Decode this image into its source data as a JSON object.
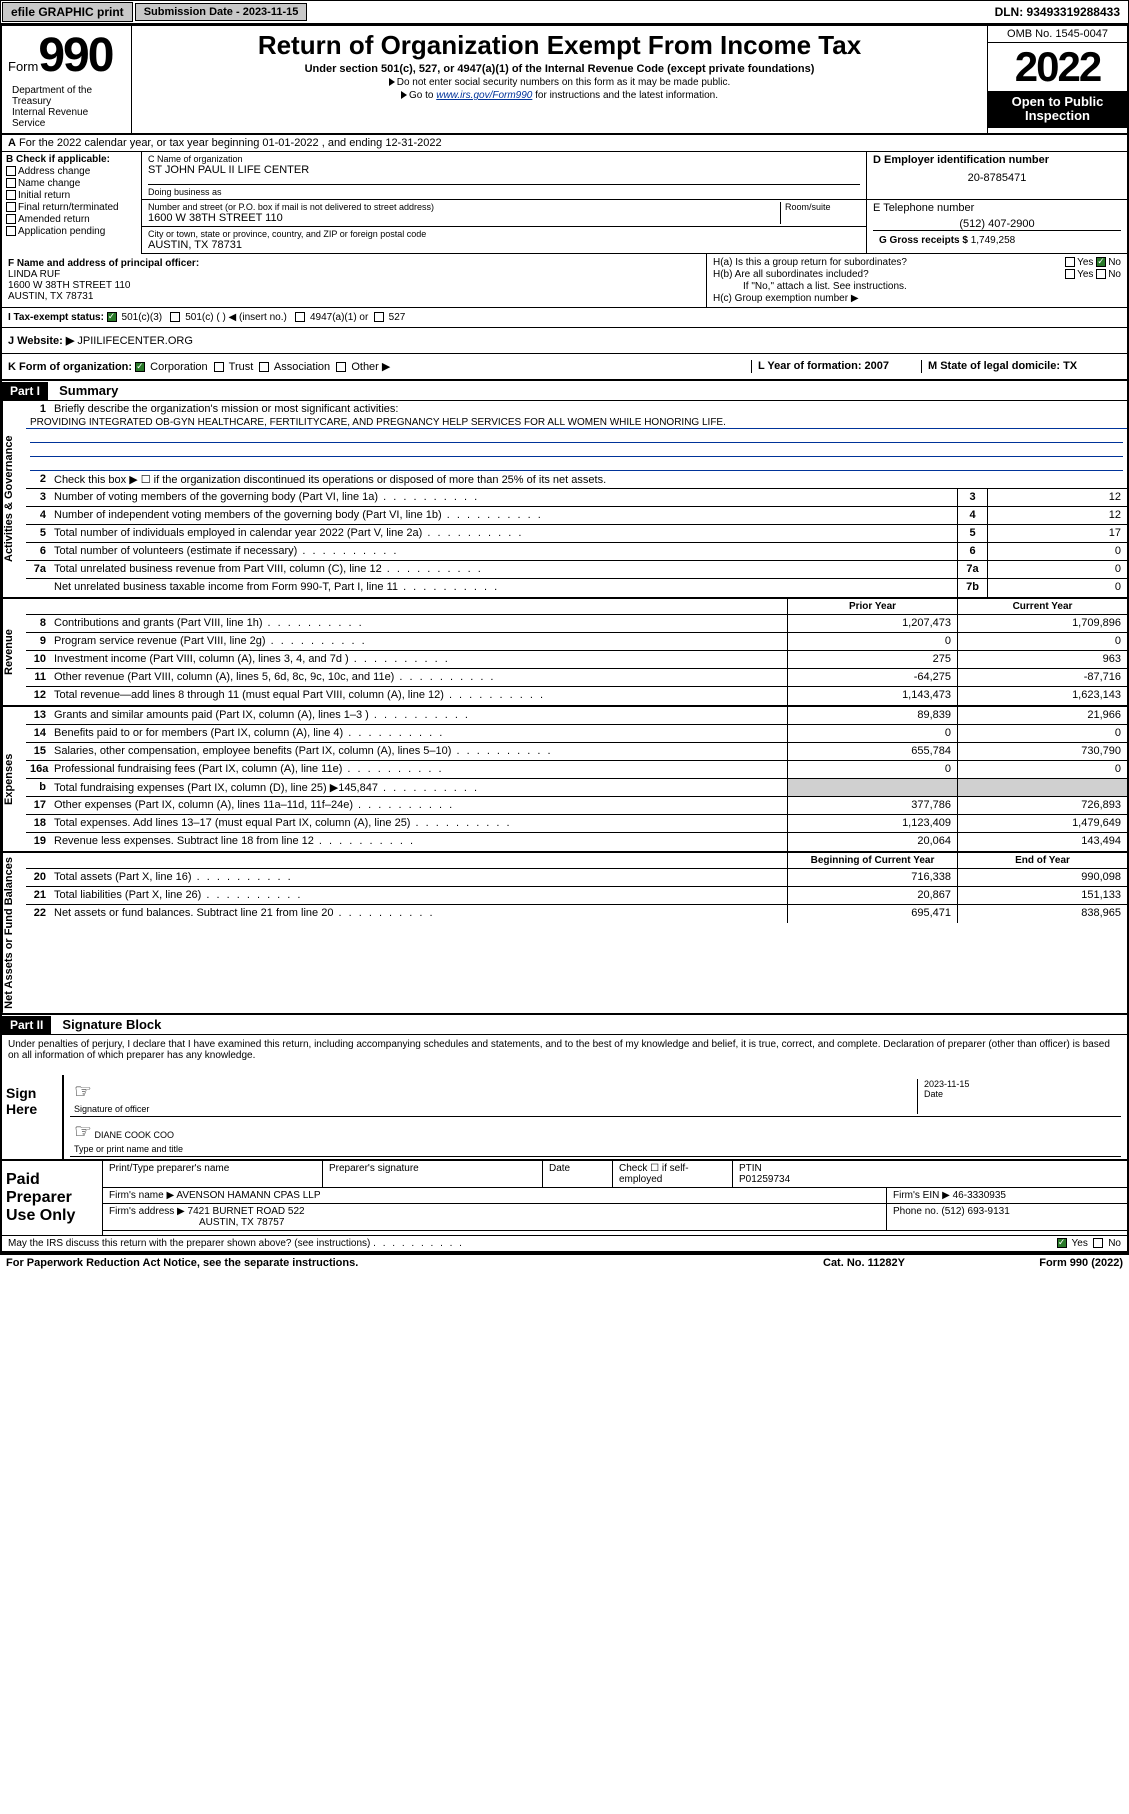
{
  "topbar": {
    "efile": "efile GRAPHIC print",
    "submission_label": "Submission Date - 2023-11-15",
    "dln": "DLN: 93493319288433"
  },
  "header": {
    "form_label": "Form",
    "form_num": "990",
    "title": "Return of Organization Exempt From Income Tax",
    "sub1": "Under section 501(c), 527, or 4947(a)(1) of the Internal Revenue Code (except private foundations)",
    "sub2": "Do not enter social security numbers on this form as it may be made public.",
    "sub3_pre": "Go to ",
    "sub3_link": "www.irs.gov/Form990",
    "sub3_post": " for instructions and the latest information.",
    "dept": "Department of the Treasury\nInternal Revenue Service",
    "omb": "OMB No. 1545-0047",
    "year": "2022",
    "open": "Open to Public Inspection"
  },
  "lineA": "For the 2022 calendar year, or tax year beginning 01-01-2022   , and ending 12-31-2022",
  "B": {
    "label": "B Check if applicable:",
    "items": [
      "Address change",
      "Name change",
      "Initial return",
      "Final return/terminated",
      "Amended return",
      "Application pending"
    ]
  },
  "C": {
    "name_label": "C Name of organization",
    "name": "ST JOHN PAUL II LIFE CENTER",
    "dba_label": "Doing business as",
    "dba": "",
    "street_label": "Number and street (or P.O. box if mail is not delivered to street address)",
    "room_label": "Room/suite",
    "street": "1600 W 38TH STREET 110",
    "city_label": "City or town, state or province, country, and ZIP or foreign postal code",
    "city": "AUSTIN, TX  78731"
  },
  "D": {
    "label": "D Employer identification number",
    "val": "20-8785471"
  },
  "E": {
    "label": "E Telephone number",
    "val": "(512) 407-2900"
  },
  "G": {
    "label": "G Gross receipts $",
    "val": "1,749,258"
  },
  "F": {
    "label": "F Name and address of principal officer:",
    "name": "LINDA RUF",
    "addr1": "1600 W 38TH STREET 110",
    "addr2": "AUSTIN, TX  78731"
  },
  "H": {
    "a": "H(a)  Is this a group return for subordinates?",
    "b": "H(b)  Are all subordinates included?",
    "b_note": "If \"No,\" attach a list. See instructions.",
    "c": "H(c)  Group exemption number ▶",
    "yes": "Yes",
    "no": "No"
  },
  "I": {
    "label": "I   Tax-exempt status:",
    "opt1": "501(c)(3)",
    "opt2": "501(c) (  ) ◀ (insert no.)",
    "opt3": "4947(a)(1) or",
    "opt4": "527"
  },
  "J": {
    "label": "J   Website: ▶",
    "val": "JPIILIFECENTER.ORG"
  },
  "K": {
    "label": "K Form of organization:",
    "opts": [
      "Corporation",
      "Trust",
      "Association",
      "Other ▶"
    ]
  },
  "L": {
    "label": "L Year of formation: 2007"
  },
  "M": {
    "label": "M State of legal domicile: TX"
  },
  "part1": {
    "hdr": "Part I",
    "title": "Summary",
    "l1": "Briefly describe the organization's mission or most significant activities:",
    "mission": "PROVIDING INTEGRATED OB-GYN HEALTHCARE, FERTILITYCARE, AND PREGNANCY HELP SERVICES FOR ALL WOMEN WHILE HONORING LIFE.",
    "l2": "Check this box ▶ ☐  if the organization discontinued its operations or disposed of more than 25% of its net assets.",
    "rows_gov": [
      {
        "n": "3",
        "t": "Number of voting members of the governing body (Part VI, line 1a)",
        "box": "3",
        "v": "12"
      },
      {
        "n": "4",
        "t": "Number of independent voting members of the governing body (Part VI, line 1b)",
        "box": "4",
        "v": "12"
      },
      {
        "n": "5",
        "t": "Total number of individuals employed in calendar year 2022 (Part V, line 2a)",
        "box": "5",
        "v": "17"
      },
      {
        "n": "6",
        "t": "Total number of volunteers (estimate if necessary)",
        "box": "6",
        "v": "0"
      },
      {
        "n": "7a",
        "t": "Total unrelated business revenue from Part VIII, column (C), line 12",
        "box": "7a",
        "v": "0"
      },
      {
        "n": "",
        "t": "Net unrelated business taxable income from Form 990-T, Part I, line 11",
        "box": "7b",
        "v": "0"
      }
    ],
    "col_prior": "Prior Year",
    "col_current": "Current Year",
    "col_begin": "Beginning of Current Year",
    "col_end": "End of Year",
    "rows_rev": [
      {
        "n": "8",
        "t": "Contributions and grants (Part VIII, line 1h)",
        "p": "1,207,473",
        "c": "1,709,896"
      },
      {
        "n": "9",
        "t": "Program service revenue (Part VIII, line 2g)",
        "p": "0",
        "c": "0"
      },
      {
        "n": "10",
        "t": "Investment income (Part VIII, column (A), lines 3, 4, and 7d )",
        "p": "275",
        "c": "963"
      },
      {
        "n": "11",
        "t": "Other revenue (Part VIII, column (A), lines 5, 6d, 8c, 9c, 10c, and 11e)",
        "p": "-64,275",
        "c": "-87,716"
      },
      {
        "n": "12",
        "t": "Total revenue—add lines 8 through 11 (must equal Part VIII, column (A), line 12)",
        "p": "1,143,473",
        "c": "1,623,143"
      }
    ],
    "rows_exp": [
      {
        "n": "13",
        "t": "Grants and similar amounts paid (Part IX, column (A), lines 1–3 )",
        "p": "89,839",
        "c": "21,966"
      },
      {
        "n": "14",
        "t": "Benefits paid to or for members (Part IX, column (A), line 4)",
        "p": "0",
        "c": "0"
      },
      {
        "n": "15",
        "t": "Salaries, other compensation, employee benefits (Part IX, column (A), lines 5–10)",
        "p": "655,784",
        "c": "730,790"
      },
      {
        "n": "16a",
        "t": "Professional fundraising fees (Part IX, column (A), line 11e)",
        "p": "0",
        "c": "0"
      },
      {
        "n": "b",
        "t": "Total fundraising expenses (Part IX, column (D), line 25) ▶145,847",
        "p": "",
        "c": "",
        "shade": true
      },
      {
        "n": "17",
        "t": "Other expenses (Part IX, column (A), lines 11a–11d, 11f–24e)",
        "p": "377,786",
        "c": "726,893"
      },
      {
        "n": "18",
        "t": "Total expenses. Add lines 13–17 (must equal Part IX, column (A), line 25)",
        "p": "1,123,409",
        "c": "1,479,649"
      },
      {
        "n": "19",
        "t": "Revenue less expenses. Subtract line 18 from line 12",
        "p": "20,064",
        "c": "143,494"
      }
    ],
    "rows_net": [
      {
        "n": "20",
        "t": "Total assets (Part X, line 16)",
        "p": "716,338",
        "c": "990,098"
      },
      {
        "n": "21",
        "t": "Total liabilities (Part X, line 26)",
        "p": "20,867",
        "c": "151,133"
      },
      {
        "n": "22",
        "t": "Net assets or fund balances. Subtract line 21 from line 20",
        "p": "695,471",
        "c": "838,965"
      }
    ],
    "vtab_gov": "Activities & Governance",
    "vtab_rev": "Revenue",
    "vtab_exp": "Expenses",
    "vtab_net": "Net Assets or Fund Balances"
  },
  "part2": {
    "hdr": "Part II",
    "title": "Signature Block",
    "decl": "Under penalties of perjury, I declare that I have examined this return, including accompanying schedules and statements, and to the best of my knowledge and belief, it is true, correct, and complete. Declaration of preparer (other than officer) is based on all information of which preparer has any knowledge.",
    "sign_here": "Sign Here",
    "sig_officer": "Signature of officer",
    "sig_date": "2023-11-15",
    "date_lbl": "Date",
    "name_title": "DIANE COOK COO",
    "name_title_lbl": "Type or print name and title",
    "paid": "Paid Preparer Use Only",
    "print_name_lbl": "Print/Type preparer's name",
    "prep_sig_lbl": "Preparer's signature",
    "check_self": "Check ☐ if self-employed",
    "ptin_lbl": "PTIN",
    "ptin": "P01259734",
    "firm_name_lbl": "Firm's name   ▶",
    "firm_name": "AVENSON HAMANN CPAS LLP",
    "firm_ein_lbl": "Firm's EIN ▶",
    "firm_ein": "46-3330935",
    "firm_addr_lbl": "Firm's address ▶",
    "firm_addr1": "7421 BURNET ROAD 522",
    "firm_addr2": "AUSTIN, TX  78757",
    "phone_lbl": "Phone no.",
    "phone": "(512) 693-9131",
    "may_irs": "May the IRS discuss this return with the preparer shown above? (see instructions)"
  },
  "footer": {
    "paperwork": "For Paperwork Reduction Act Notice, see the separate instructions.",
    "cat": "Cat. No. 11282Y",
    "form": "Form 990 (2022)"
  },
  "colors": {
    "link": "#003399",
    "check_green": "#2a7a2a",
    "shade": "#d0d0d0",
    "btn_bg": "#c8c8c8"
  }
}
